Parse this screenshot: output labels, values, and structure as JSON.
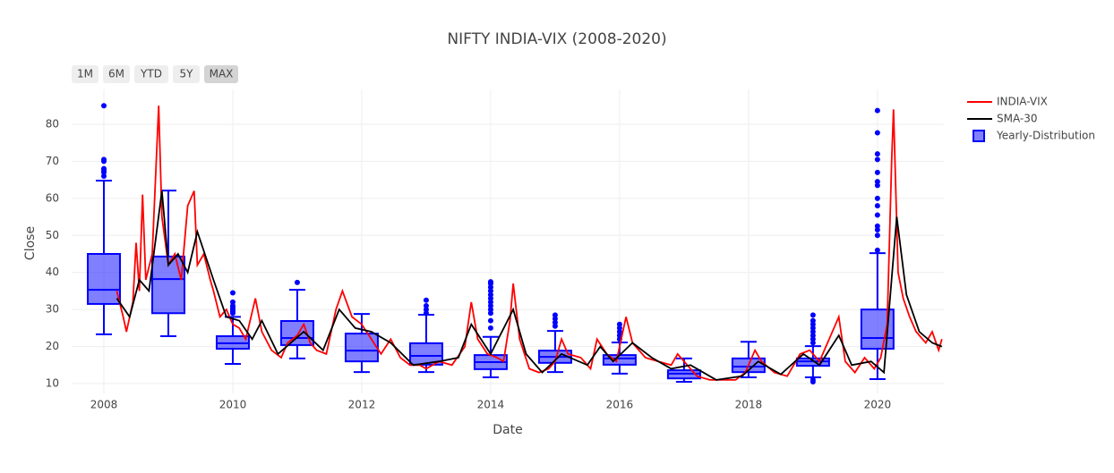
{
  "chart_data": {
    "type": "line",
    "title": "NIFTY INDIA-VIX (2008-2020)",
    "x_label": "Date",
    "y_label": "Close",
    "xlim": [
      2007.5,
      2021.03
    ],
    "ylim": [
      7.35,
      89.4
    ],
    "xticks": [
      2008,
      2010,
      2012,
      2014,
      2016,
      2018,
      2020
    ],
    "yticks": [
      10,
      20,
      30,
      40,
      50,
      60,
      70,
      80
    ],
    "grid": true,
    "range_buttons": [
      "1M",
      "6M",
      "YTD",
      "5Y",
      "MAX"
    ],
    "active_button": "MAX",
    "series": [
      {
        "name": "INDIA-VIX",
        "color": "#ff0000",
        "x": [
          2008.2,
          2008.3,
          2008.35,
          2008.45,
          2008.5,
          2008.55,
          2008.6,
          2008.65,
          2008.75,
          2008.8,
          2008.85,
          2008.9,
          2009.0,
          2009.1,
          2009.2,
          2009.3,
          2009.4,
          2009.45,
          2009.55,
          2009.65,
          2009.7,
          2009.8,
          2009.9,
          2010.0,
          2010.1,
          2010.2,
          2010.35,
          2010.45,
          2010.6,
          2010.75,
          2010.85,
          2011.0,
          2011.1,
          2011.2,
          2011.3,
          2011.45,
          2011.6,
          2011.7,
          2011.85,
          2012.0,
          2012.15,
          2012.3,
          2012.45,
          2012.6,
          2012.75,
          2012.9,
          2013.0,
          2013.2,
          2013.4,
          2013.6,
          2013.7,
          2013.8,
          2013.95,
          2014.1,
          2014.2,
          2014.3,
          2014.35,
          2014.45,
          2014.6,
          2014.75,
          2014.9,
          2015.0,
          2015.1,
          2015.2,
          2015.4,
          2015.55,
          2015.65,
          2015.8,
          2015.95,
          2016.1,
          2016.2,
          2016.4,
          2016.6,
          2016.8,
          2016.9,
          2017.0,
          2017.2,
          2017.4,
          2017.6,
          2017.8,
          2017.95,
          2018.1,
          2018.2,
          2018.4,
          2018.6,
          2018.8,
          2018.95,
          2019.1,
          2019.25,
          2019.4,
          2019.5,
          2019.65,
          2019.8,
          2019.95,
          2020.05,
          2020.15,
          2020.22,
          2020.25,
          2020.32,
          2020.4,
          2020.5,
          2020.6,
          2020.75,
          2020.85,
          2020.95,
          2021.0
        ],
        "values": [
          35,
          28,
          24,
          32,
          48,
          35,
          61,
          38,
          45,
          65,
          85,
          55,
          42,
          45,
          38,
          58,
          62,
          42,
          45,
          38,
          35,
          28,
          30,
          26,
          25,
          22,
          33,
          24,
          19,
          17,
          21,
          23,
          26,
          21,
          19,
          18,
          30,
          35,
          28,
          26,
          22,
          18,
          22,
          17,
          15,
          15,
          14,
          16,
          15,
          20,
          32,
          22,
          18,
          17,
          16,
          27,
          37,
          22,
          14,
          13,
          14,
          16,
          22,
          18,
          17,
          14,
          22,
          18,
          16,
          28,
          21,
          17,
          16,
          15,
          18,
          16,
          12,
          11,
          11,
          11,
          13,
          19,
          16,
          13,
          12,
          18,
          19,
          16,
          22,
          28,
          16,
          13,
          17,
          14,
          17,
          26,
          70,
          84,
          40,
          33,
          28,
          24,
          21,
          24,
          19,
          22
        ]
      },
      {
        "name": "SMA-30",
        "color": "#000000",
        "x": [
          2008.2,
          2008.4,
          2008.55,
          2008.7,
          2008.9,
          2009.0,
          2009.15,
          2009.3,
          2009.45,
          2009.7,
          2009.9,
          2010.1,
          2010.3,
          2010.45,
          2010.7,
          2010.9,
          2011.1,
          2011.4,
          2011.65,
          2011.9,
          2012.15,
          2012.45,
          2012.8,
          2013.2,
          2013.5,
          2013.7,
          2014.0,
          2014.35,
          2014.55,
          2014.8,
          2015.1,
          2015.5,
          2015.7,
          2015.9,
          2016.2,
          2016.5,
          2016.8,
          2017.1,
          2017.5,
          2017.9,
          2018.15,
          2018.5,
          2018.85,
          2019.1,
          2019.4,
          2019.6,
          2019.9,
          2020.1,
          2020.3,
          2020.45,
          2020.65,
          2020.85,
          2021.0
        ],
        "values": [
          33,
          28,
          38,
          35,
          62,
          42,
          45,
          40,
          51,
          38,
          28,
          27,
          22,
          27,
          18,
          21,
          24,
          19,
          30,
          25,
          24,
          21,
          15,
          16,
          17,
          26,
          18,
          30,
          18,
          13,
          18,
          15,
          20,
          16,
          21,
          17,
          14,
          15,
          11,
          12,
          16,
          12.5,
          18,
          15,
          23,
          15,
          16,
          13,
          55,
          34,
          24,
          21,
          20
        ]
      }
    ],
    "boxes": {
      "name": "Yearly-Distribution",
      "color": "#0000ff",
      "fill": "rgba(0,0,255,0.5)",
      "positions": [
        2008,
        2009,
        2010,
        2011,
        2012,
        2013,
        2014,
        2015,
        2016,
        2017,
        2018,
        2019,
        2020
      ],
      "min": [
        23.3,
        22.8,
        15.3,
        16.8,
        13.1,
        13.1,
        11.7,
        13.1,
        12.7,
        10.5,
        11.7,
        11.7,
        11.2
      ],
      "q1": [
        31.5,
        29,
        19.4,
        20.4,
        16,
        15.1,
        13.9,
        15.6,
        15.1,
        11.4,
        13.1,
        14.8,
        19.4
      ],
      "median": [
        35.3,
        38.2,
        20.9,
        22.3,
        18.9,
        17.5,
        15.8,
        17.2,
        16.8,
        12.7,
        14.6,
        16,
        22.3
      ],
      "q3": [
        45,
        44.3,
        22.8,
        26.9,
        23.5,
        20.9,
        17.7,
        18.9,
        17.7,
        13.6,
        16.8,
        16.8,
        30
      ],
      "max": [
        64.8,
        62.1,
        28,
        35.3,
        28.8,
        28.6,
        22.6,
        24.2,
        21.1,
        16.8,
        21.3,
        20.1,
        45.2
      ],
      "outliers": [
        [
          85,
          70.5,
          70,
          68,
          67.5,
          67,
          66
        ],
        [],
        [
          34.5,
          32,
          31,
          30.5,
          30,
          29.5,
          29
        ],
        [
          37.3
        ],
        [],
        [
          29,
          30,
          31,
          32.5
        ],
        [
          37.5,
          37,
          36,
          35,
          34,
          33,
          32,
          31,
          30,
          29,
          27,
          25
        ],
        [
          25.5,
          26.5,
          27.5,
          28.5
        ],
        [
          22,
          23,
          24,
          25,
          26
        ],
        [],
        [],
        [
          21,
          22,
          23,
          24,
          25,
          26,
          27,
          28.5,
          11,
          10.5
        ],
        [
          46,
          50,
          51.5,
          52.5,
          55.5,
          58,
          60,
          63.5,
          64.5,
          67,
          70.5,
          72,
          77.7,
          83.7
        ]
      ]
    }
  }
}
